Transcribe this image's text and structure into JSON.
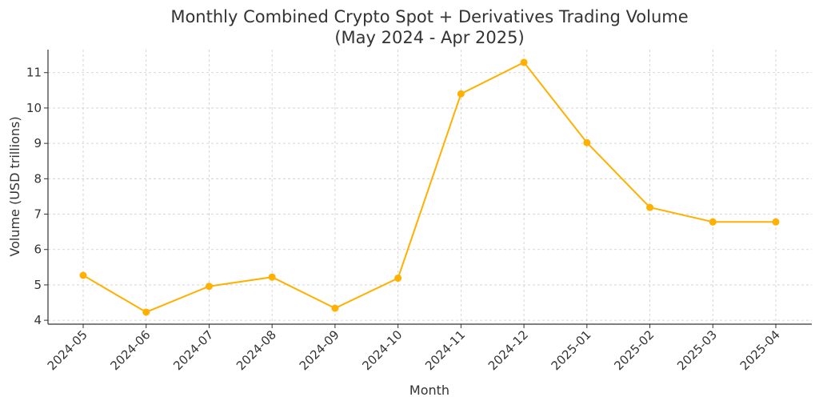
{
  "chart_data": {
    "type": "line",
    "title": "Monthly Combined Crypto Spot + Derivatives Trading Volume",
    "subtitle": "(May 2024 - Apr 2025)",
    "xlabel": "Month",
    "ylabel": "Volume (USD trillions)",
    "categories": [
      "2024-05",
      "2024-06",
      "2024-07",
      "2024-08",
      "2024-09",
      "2024-10",
      "2024-11",
      "2024-12",
      "2025-01",
      "2025-02",
      "2025-03",
      "2025-04"
    ],
    "values": [
      5.27,
      4.23,
      4.96,
      5.22,
      4.34,
      5.19,
      10.4,
      11.29,
      9.02,
      7.19,
      6.78,
      6.78
    ],
    "yticks": [
      4,
      5,
      6,
      7,
      8,
      9,
      10,
      11
    ],
    "ylim": [
      3.89,
      11.65
    ],
    "grid": true,
    "line_color": "#FFB000",
    "marker": "circle"
  }
}
